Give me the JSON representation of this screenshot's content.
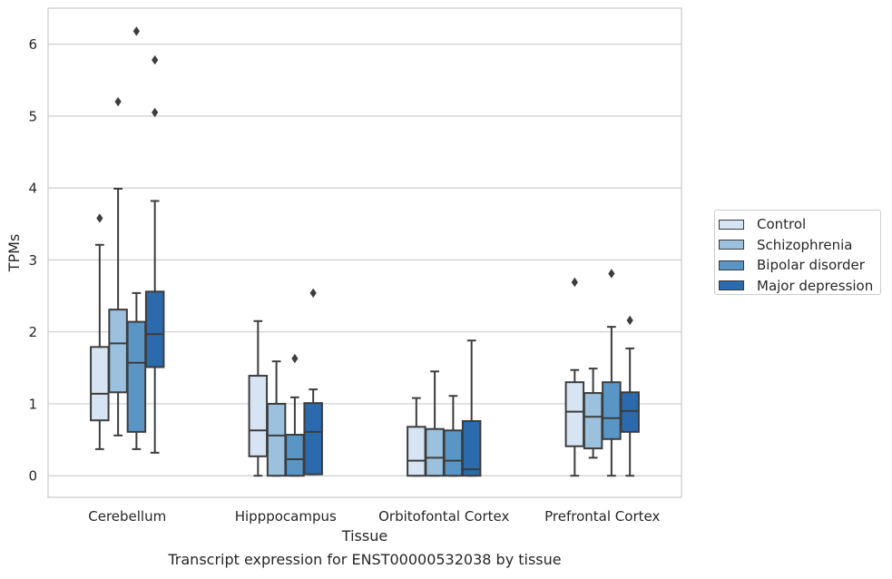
{
  "chart_data": {
    "type": "boxplot",
    "title": "Transcript expression for ENST00000532038 by tissue",
    "xlabel": "Tissue",
    "ylabel": "TPMs",
    "ylim": [
      -0.3,
      6.5
    ],
    "yticks": [
      0,
      1,
      2,
      3,
      4,
      5,
      6
    ],
    "grid": "horizontal",
    "legend_position": "right",
    "categories": [
      "Cerebellum",
      "Hipppocampus",
      "Orbitofontal Cortex",
      "Prefrontal Cortex"
    ],
    "series": [
      {
        "name": "Control",
        "color": "#d6e4f3",
        "boxes": [
          {
            "whislo": 0.37,
            "q1": 0.77,
            "med": 1.14,
            "q3": 1.79,
            "whishi": 3.21,
            "fliers": [
              3.58
            ]
          },
          {
            "whislo": 0.0,
            "q1": 0.27,
            "med": 0.63,
            "q3": 1.39,
            "whishi": 2.15,
            "fliers": []
          },
          {
            "whislo": 0.0,
            "q1": 0.0,
            "med": 0.21,
            "q3": 0.68,
            "whishi": 1.08,
            "fliers": []
          },
          {
            "whislo": 0.0,
            "q1": 0.41,
            "med": 0.89,
            "q3": 1.3,
            "whishi": 1.47,
            "fliers": [
              2.69
            ]
          }
        ]
      },
      {
        "name": "Schizophrenia",
        "color": "#9bc1de",
        "boxes": [
          {
            "whislo": 0.56,
            "q1": 1.16,
            "med": 1.84,
            "q3": 2.31,
            "whishi": 3.99,
            "fliers": [
              5.2
            ]
          },
          {
            "whislo": 0.0,
            "q1": 0.0,
            "med": 0.56,
            "q3": 1.0,
            "whishi": 1.59,
            "fliers": []
          },
          {
            "whislo": 0.0,
            "q1": 0.0,
            "med": 0.25,
            "q3": 0.65,
            "whishi": 1.45,
            "fliers": []
          },
          {
            "whislo": 0.25,
            "q1": 0.38,
            "med": 0.82,
            "q3": 1.15,
            "whishi": 1.49,
            "fliers": []
          }
        ]
      },
      {
        "name": "Bipolar disorder",
        "color": "#5996c5",
        "boxes": [
          {
            "whislo": 0.37,
            "q1": 0.61,
            "med": 1.57,
            "q3": 2.14,
            "whishi": 2.54,
            "fliers": [
              6.18
            ]
          },
          {
            "whislo": 0.0,
            "q1": 0.0,
            "med": 0.23,
            "q3": 0.57,
            "whishi": 1.09,
            "fliers": [
              1.63
            ]
          },
          {
            "whislo": 0.0,
            "q1": 0.0,
            "med": 0.21,
            "q3": 0.63,
            "whishi": 1.11,
            "fliers": []
          },
          {
            "whislo": 0.0,
            "q1": 0.51,
            "med": 0.8,
            "q3": 1.3,
            "whishi": 2.07,
            "fliers": [
              2.81
            ]
          }
        ]
      },
      {
        "name": "Major depression",
        "color": "#2a6aad",
        "boxes": [
          {
            "whislo": 0.32,
            "q1": 1.51,
            "med": 1.97,
            "q3": 2.56,
            "whishi": 3.82,
            "fliers": [
              5.05,
              5.78
            ]
          },
          {
            "whislo": 0.02,
            "q1": 0.02,
            "med": 0.61,
            "q3": 1.01,
            "whishi": 1.2,
            "fliers": [
              2.54
            ]
          },
          {
            "whislo": 0.0,
            "q1": 0.0,
            "med": 0.09,
            "q3": 0.76,
            "whishi": 1.88,
            "fliers": []
          },
          {
            "whislo": 0.0,
            "q1": 0.61,
            "med": 0.9,
            "q3": 1.16,
            "whishi": 1.77,
            "fliers": [
              2.16
            ]
          }
        ]
      }
    ]
  }
}
